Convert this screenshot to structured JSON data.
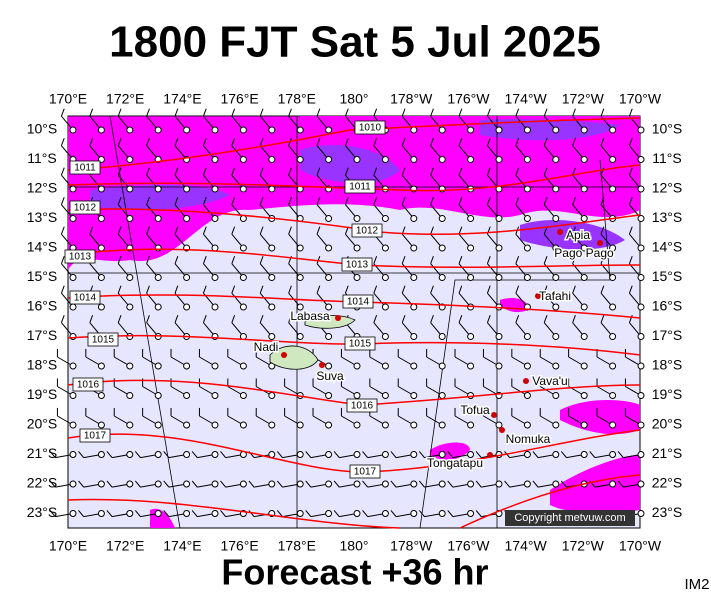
{
  "title": "1800 FJT Sat 5 Jul 2025",
  "footer": "Forecast +36 hr",
  "corner_label": "IM2",
  "copyright": "Copyright metvuw.com",
  "lon_labels": [
    "170°E",
    "172°E",
    "174°E",
    "176°E",
    "178°E",
    "180°",
    "178°W",
    "176°W",
    "174°W",
    "172°W",
    "170°W"
  ],
  "lat_labels": [
    "10°S",
    "11°S",
    "12°S",
    "13°S",
    "14°S",
    "15°S",
    "16°S",
    "17°S",
    "18°S",
    "19°S",
    "20°S",
    "21°S",
    "22°S",
    "23°S"
  ],
  "places": [
    "Labasa",
    "Nadi",
    "Suva",
    "Apia",
    "Pago Pago",
    "Tafahi",
    "Vava'u",
    "Tofua",
    "Nomuka",
    "Tongatapu"
  ],
  "isobar_labels": [
    "1010",
    "1011",
    "1011",
    "1012",
    "1012",
    "1013",
    "1013",
    "1014",
    "1014",
    "1015",
    "1015",
    "1016",
    "1016",
    "1017",
    "1017"
  ]
}
